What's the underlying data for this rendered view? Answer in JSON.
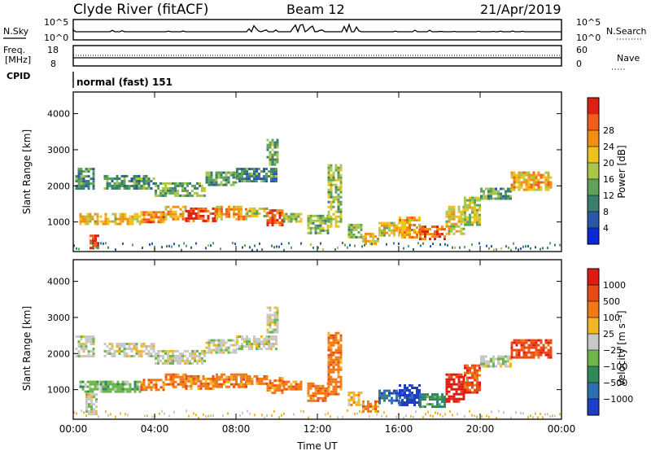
{
  "header": {
    "station": "Clyde River (fitACF)",
    "beam": "Beam 12",
    "date": "21/Apr/2019"
  },
  "summary_panels": {
    "nsky_label": "N.Sky",
    "nsky_ticks": [
      "10^5",
      "10^0"
    ],
    "nsearch_label": "N.Search",
    "nsearch_ticks": [
      "10^5",
      "10^0"
    ],
    "freq_label_line1": "Freq.",
    "freq_label_line2": "[MHz]",
    "freq_ticks": [
      "18",
      "8"
    ],
    "nave_label": "Nave",
    "nave_ticks": [
      "60",
      "0"
    ],
    "cpid_label": "CPID",
    "cpid_value": "normal (fast) 151"
  },
  "chart_data": [
    {
      "type": "heatmap",
      "title": "",
      "ylabel": "Slant Range [km]",
      "ylim": [
        180,
        4600
      ],
      "yticks": [
        "1000",
        "2000",
        "3000",
        "4000"
      ],
      "ytick_values": [
        1000,
        2000,
        3000,
        4000
      ],
      "x_ticks": [
        "00:00",
        "04:00",
        "08:00",
        "12:00",
        "16:00",
        "20:00",
        "00:00"
      ],
      "xlim_hours": [
        0,
        24
      ],
      "colorbar": {
        "label": "Power [dB]",
        "ticks": [
          "4",
          "8",
          "12",
          "16",
          "20",
          "24",
          "28"
        ],
        "colors": [
          "#0a2bd4",
          "#2c57a8",
          "#3a7f6c",
          "#5fa25a",
          "#a9c74a",
          "#f0c21c",
          "#f39013",
          "#ef5f1a",
          "#de1f12"
        ]
      },
      "patches": [
        {
          "t": [
            0.3,
            1.2
          ],
          "r": [
            950,
            1250
          ],
          "v": 18
        },
        {
          "t": [
            0.8,
            1.2
          ],
          "r": [
            250,
            650
          ],
          "v": 28
        },
        {
          "t": [
            1.3,
            3.3
          ],
          "r": [
            950,
            1250
          ],
          "v": 18
        },
        {
          "t": [
            3.3,
            4.5
          ],
          "r": [
            1000,
            1300
          ],
          "v": 22
        },
        {
          "t": [
            4.5,
            5.5
          ],
          "r": [
            1050,
            1450
          ],
          "v": 20
        },
        {
          "t": [
            5.5,
            7.0
          ],
          "r": [
            1000,
            1400
          ],
          "v": 26
        },
        {
          "t": [
            7.0,
            8.5
          ],
          "r": [
            1100,
            1450
          ],
          "v": 21
        },
        {
          "t": [
            8.5,
            9.5
          ],
          "r": [
            1150,
            1400
          ],
          "v": 16
        },
        {
          "t": [
            9.5,
            10.3
          ],
          "r": [
            900,
            1350
          ],
          "v": 25
        },
        {
          "t": [
            10.3,
            11.2
          ],
          "r": [
            1000,
            1250
          ],
          "v": 14
        },
        {
          "t": [
            11.5,
            12.5
          ],
          "r": [
            700,
            1200
          ],
          "v": 13
        },
        {
          "t": [
            12.5,
            13.2
          ],
          "r": [
            900,
            2600
          ],
          "v": 14
        },
        {
          "t": [
            13.5,
            14.2
          ],
          "r": [
            550,
            950
          ],
          "v": 13
        },
        {
          "t": [
            14.2,
            15.0
          ],
          "r": [
            400,
            700
          ],
          "v": 18
        },
        {
          "t": [
            15.0,
            16.0
          ],
          "r": [
            600,
            1000
          ],
          "v": 17
        },
        {
          "t": [
            16.0,
            17.0
          ],
          "r": [
            600,
            1150
          ],
          "v": 20
        },
        {
          "t": [
            17.0,
            18.3
          ],
          "r": [
            500,
            900
          ],
          "v": 25
        },
        {
          "t": [
            18.3,
            19.2
          ],
          "r": [
            700,
            1450
          ],
          "v": 17
        },
        {
          "t": [
            19.2,
            20.0
          ],
          "r": [
            900,
            1700
          ],
          "v": 15
        },
        {
          "t": [
            20.0,
            21.5
          ],
          "r": [
            1650,
            1950
          ],
          "v": 11
        },
        {
          "t": [
            21.5,
            23.5
          ],
          "r": [
            1900,
            2400
          ],
          "v": 20
        },
        {
          "t": [
            0.1,
            1.0
          ],
          "r": [
            1900,
            2500
          ],
          "v": 10
        },
        {
          "t": [
            1.5,
            4.0
          ],
          "r": [
            1900,
            2300
          ],
          "v": 10
        },
        {
          "t": [
            4.0,
            6.5
          ],
          "r": [
            1700,
            2100
          ],
          "v": 12
        },
        {
          "t": [
            6.5,
            8.0
          ],
          "r": [
            2000,
            2400
          ],
          "v": 11
        },
        {
          "t": [
            8.0,
            10.0
          ],
          "r": [
            2100,
            2500
          ],
          "v": 9
        },
        {
          "t": [
            9.5,
            10.0
          ],
          "r": [
            2600,
            3300
          ],
          "v": 12
        }
      ]
    },
    {
      "type": "heatmap",
      "title": "",
      "ylabel": "Slant Range [km]",
      "ylim": [
        180,
        4600
      ],
      "yticks": [
        "1000",
        "2000",
        "3000",
        "4000"
      ],
      "ytick_values": [
        1000,
        2000,
        3000,
        4000
      ],
      "x_ticks": [
        "00:00",
        "04:00",
        "08:00",
        "12:00",
        "16:00",
        "20:00",
        "00:00"
      ],
      "xlim_hours": [
        0,
        24
      ],
      "xlabel": "Time UT",
      "colorbar": {
        "label": "Velocity  [m s⁻¹]",
        "ticks": [
          "1000",
          "500",
          "100",
          "25",
          "−25",
          "−100",
          "−500",
          "−1000"
        ],
        "colors": [
          "#1f3cc4",
          "#2e6fb0",
          "#2f8a5a",
          "#6db64a",
          "#c8c8c8",
          "#f2b624",
          "#f07a17",
          "#ea4b16",
          "#de1a12"
        ]
      },
      "patches": [
        {
          "t": [
            0.3,
            1.2
          ],
          "r": [
            950,
            1250
          ],
          "v": 3
        },
        {
          "t": [
            0.6,
            1.2
          ],
          "r": [
            300,
            900
          ],
          "v": 4
        },
        {
          "t": [
            1.3,
            3.3
          ],
          "r": [
            950,
            1250
          ],
          "v": 3
        },
        {
          "t": [
            3.3,
            4.5
          ],
          "r": [
            1000,
            1300
          ],
          "v": 6
        },
        {
          "t": [
            4.5,
            5.5
          ],
          "r": [
            1050,
            1450
          ],
          "v": 6
        },
        {
          "t": [
            5.5,
            7.0
          ],
          "r": [
            1000,
            1400
          ],
          "v": 6
        },
        {
          "t": [
            7.0,
            8.5
          ],
          "r": [
            1100,
            1450
          ],
          "v": 6
        },
        {
          "t": [
            8.5,
            9.5
          ],
          "r": [
            1150,
            1400
          ],
          "v": 6
        },
        {
          "t": [
            9.5,
            10.3
          ],
          "r": [
            900,
            1350
          ],
          "v": 6
        },
        {
          "t": [
            10.3,
            11.2
          ],
          "r": [
            1000,
            1250
          ],
          "v": 6
        },
        {
          "t": [
            11.5,
            12.5
          ],
          "r": [
            700,
            1200
          ],
          "v": 6
        },
        {
          "t": [
            12.5,
            13.2
          ],
          "r": [
            900,
            2600
          ],
          "v": 6
        },
        {
          "t": [
            13.5,
            14.2
          ],
          "r": [
            550,
            950
          ],
          "v": 5
        },
        {
          "t": [
            14.2,
            15.0
          ],
          "r": [
            400,
            700
          ],
          "v": 6
        },
        {
          "t": [
            15.0,
            16.0
          ],
          "r": [
            600,
            1000
          ],
          "v": 1
        },
        {
          "t": [
            16.0,
            17.0
          ],
          "r": [
            600,
            1150
          ],
          "v": 0
        },
        {
          "t": [
            17.0,
            18.3
          ],
          "r": [
            500,
            900
          ],
          "v": 2
        },
        {
          "t": [
            18.3,
            19.2
          ],
          "r": [
            700,
            1450
          ],
          "v": 8
        },
        {
          "t": [
            19.2,
            20.0
          ],
          "r": [
            900,
            1700
          ],
          "v": 7
        },
        {
          "t": [
            20.0,
            21.5
          ],
          "r": [
            1650,
            1950
          ],
          "v": 4
        },
        {
          "t": [
            21.5,
            23.5
          ],
          "r": [
            1900,
            2400
          ],
          "v": 7
        },
        {
          "t": [
            0.1,
            1.0
          ],
          "r": [
            1900,
            2500
          ],
          "v": 4
        },
        {
          "t": [
            1.5,
            4.0
          ],
          "r": [
            1900,
            2300
          ],
          "v": 4
        },
        {
          "t": [
            4.0,
            6.5
          ],
          "r": [
            1700,
            2100
          ],
          "v": 4
        },
        {
          "t": [
            6.5,
            8.0
          ],
          "r": [
            2000,
            2400
          ],
          "v": 4
        },
        {
          "t": [
            8.0,
            10.0
          ],
          "r": [
            2100,
            2500
          ],
          "v": 4
        },
        {
          "t": [
            9.5,
            10.0
          ],
          "r": [
            2600,
            3300
          ],
          "v": 4
        }
      ]
    }
  ]
}
